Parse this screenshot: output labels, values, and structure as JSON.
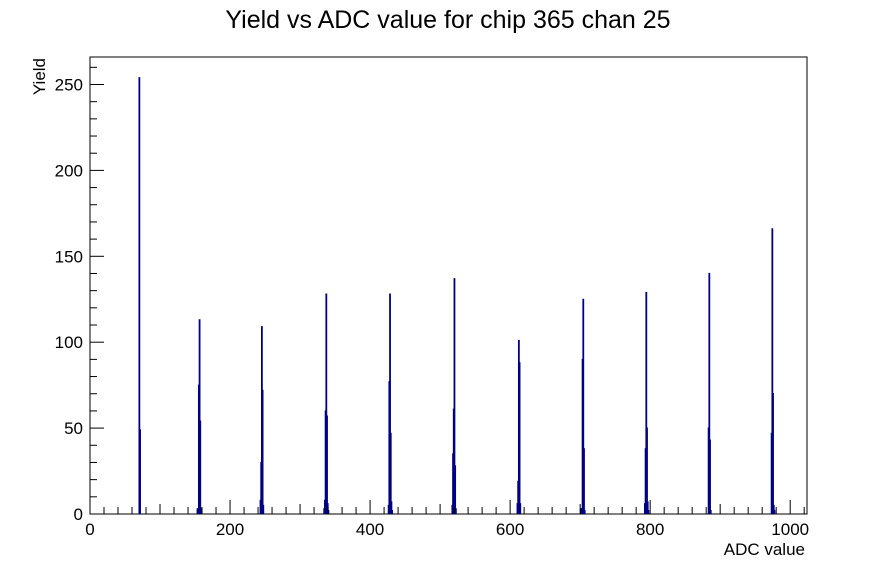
{
  "chart_data": {
    "type": "bar",
    "title": "Yield vs ADC value for chip 365 chan 25",
    "xlabel": "ADC value",
    "ylabel": "Yield",
    "xlim": [
      0,
      1024
    ],
    "ylim": [
      0,
      266
    ],
    "x_ticks": [
      0,
      200,
      400,
      600,
      800,
      1000
    ],
    "y_ticks": [
      0,
      50,
      100,
      150,
      200,
      250
    ],
    "grid": false,
    "legend": "none",
    "series": [
      {
        "color": "#000080",
        "bins": [
          [
            70,
            254
          ],
          [
            71,
            49
          ],
          [
            153,
            3
          ],
          [
            154,
            3
          ],
          [
            155,
            75
          ],
          [
            156,
            113
          ],
          [
            157,
            54
          ],
          [
            158,
            3
          ],
          [
            243,
            8
          ],
          [
            244,
            30
          ],
          [
            245,
            109
          ],
          [
            246,
            72
          ],
          [
            247,
            5
          ],
          [
            334,
            3
          ],
          [
            335,
            8
          ],
          [
            336,
            60
          ],
          [
            337,
            128
          ],
          [
            338,
            57
          ],
          [
            339,
            6
          ],
          [
            340,
            2
          ],
          [
            426,
            5
          ],
          [
            427,
            77
          ],
          [
            428,
            128
          ],
          [
            429,
            47
          ],
          [
            430,
            7
          ],
          [
            431,
            2
          ],
          [
            517,
            5
          ],
          [
            518,
            35
          ],
          [
            519,
            61
          ],
          [
            520,
            137
          ],
          [
            521,
            28
          ],
          [
            522,
            3
          ],
          [
            610,
            6
          ],
          [
            611,
            19
          ],
          [
            612,
            101
          ],
          [
            613,
            88
          ],
          [
            614,
            6
          ],
          [
            701,
            3
          ],
          [
            702,
            3
          ],
          [
            703,
            90
          ],
          [
            704,
            125
          ],
          [
            705,
            38
          ],
          [
            706,
            2
          ],
          [
            792,
            6
          ],
          [
            793,
            38
          ],
          [
            794,
            129
          ],
          [
            795,
            50
          ],
          [
            796,
            7
          ],
          [
            797,
            2
          ],
          [
            883,
            50
          ],
          [
            884,
            140
          ],
          [
            885,
            43
          ],
          [
            886,
            2
          ],
          [
            973,
            47
          ],
          [
            974,
            166
          ],
          [
            975,
            70
          ],
          [
            976,
            5
          ],
          [
            977,
            2
          ]
        ]
      }
    ]
  }
}
